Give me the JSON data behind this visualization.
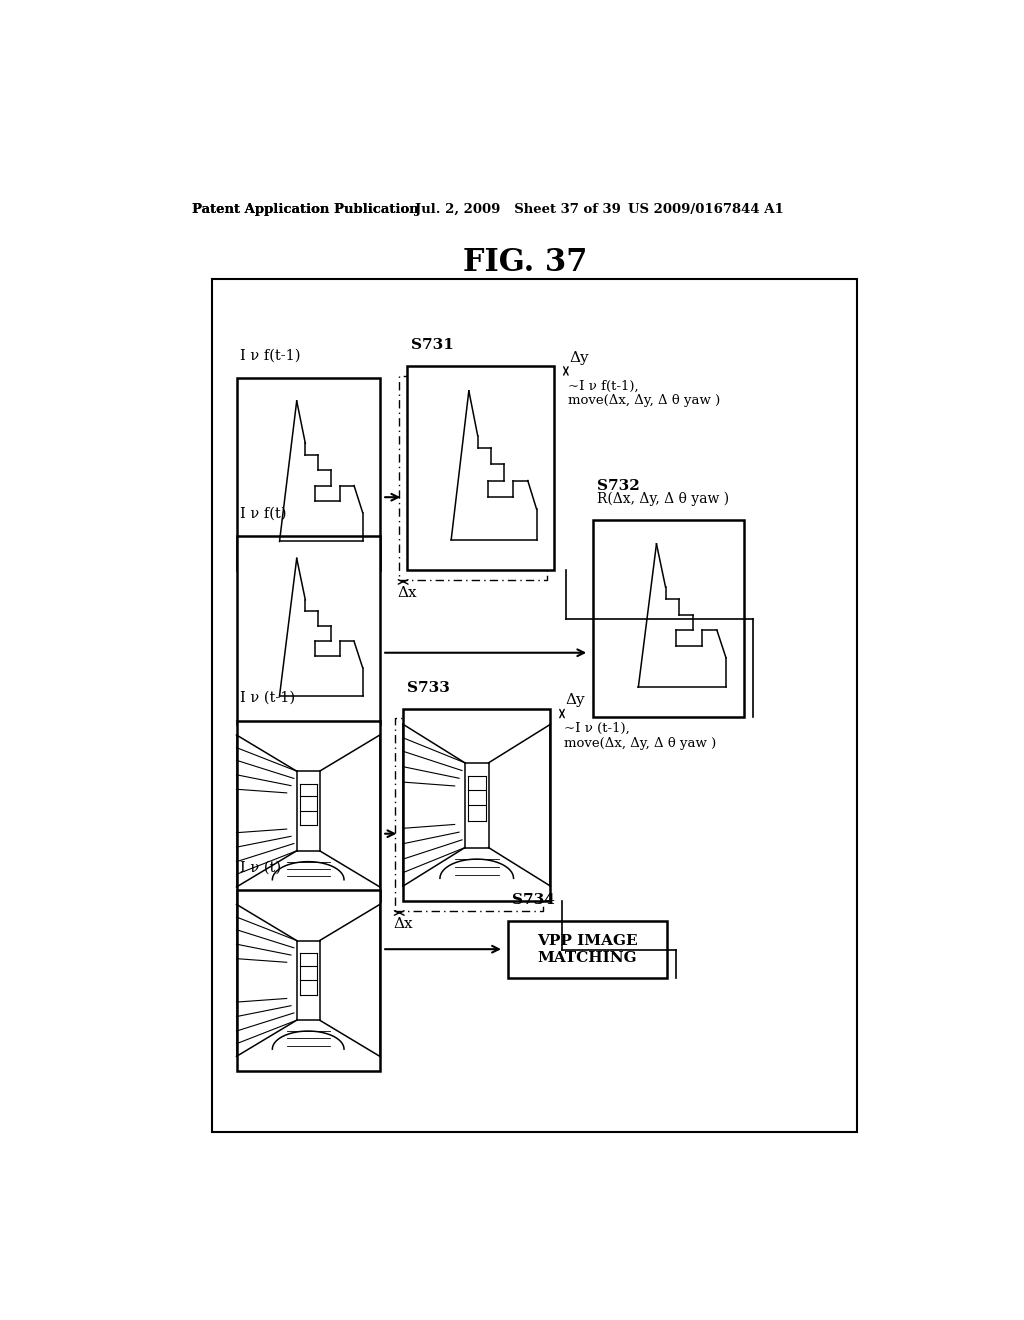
{
  "title": "FIG. 37",
  "header_left": "Patent Application Publication",
  "header_mid": "Jul. 2, 2009   Sheet 37 of 39",
  "header_right": "US 2009/0167844 A1",
  "bg": "#ffffff",
  "labels": {
    "Ivf_t1": "I ν f(t-1)",
    "S731": "S731",
    "Ivf_t": "I ν f(t)",
    "S732": "S732",
    "R_label": "R(Δx, Δy, Δ θ yaw )",
    "move_label1": "~I ν f(t-1),\nmove(Δx, Δy, Δ θ yaw )",
    "delta_y": "Δy",
    "delta_x": "Δx",
    "Iv_t1": "I ν (t-1)",
    "S733": "S733",
    "Iv_t": "I ν (t)",
    "S734": "S734",
    "vpp1": "VPP IMAGE",
    "vpp2": "MATCHING",
    "move_label2": "~I ν (t-1),\nmove(Δx, Δy, Δ θ yaw )"
  }
}
